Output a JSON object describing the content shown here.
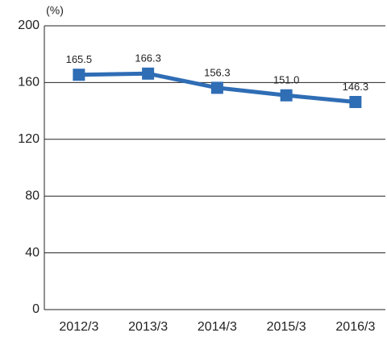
{
  "chart_data": {
    "type": "line",
    "y_unit": "(%)",
    "categories": [
      "2012/3",
      "2013/3",
      "2014/3",
      "2015/3",
      "2016/3"
    ],
    "series": [
      {
        "name": null,
        "color": "#2f6db5",
        "values": [
          165.5,
          166.3,
          156.3,
          151.0,
          146.3
        ],
        "value_labels": [
          "165.5",
          "166.3",
          "156.3",
          "151.0",
          "146.3"
        ]
      }
    ],
    "ylim": [
      0,
      200
    ],
    "yticks": [
      0,
      40,
      80,
      120,
      160,
      200
    ],
    "grid": true
  }
}
